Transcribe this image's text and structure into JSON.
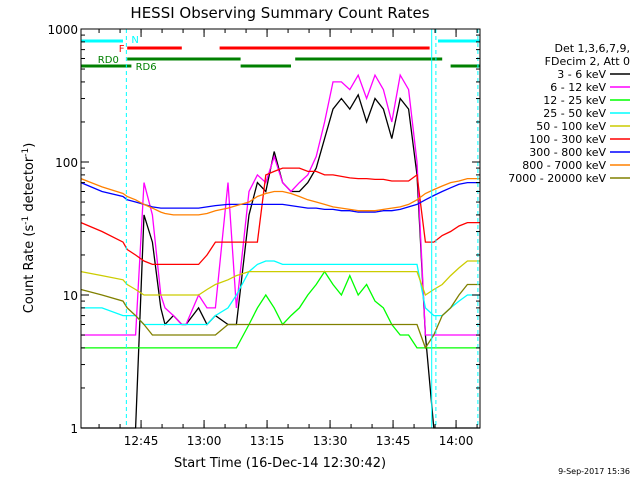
{
  "chart_data": {
    "type": "line",
    "title": "HESSI Observing Summary Count Rates",
    "xlabel": "Start Time (16-Dec-14 12:30:42)",
    "ylabel_main": "Count Rate (s",
    "ylabel_sup": "-1",
    "ylabel_mid": " detector",
    "ylabel_sup2": "-1",
    "ylabel_end": ")",
    "yscale": "log",
    "ylim": [
      1,
      1000
    ],
    "xlim_minutes": [
      0,
      95
    ],
    "x_ticks": [
      {
        "label": "12:45",
        "minutes": 14.3
      },
      {
        "label": "13:00",
        "minutes": 29.3
      },
      {
        "label": "13:15",
        "minutes": 44.3
      },
      {
        "label": "13:30",
        "minutes": 59.3
      },
      {
        "label": "13:45",
        "minutes": 74.3
      },
      {
        "label": "14:00",
        "minutes": 89.3
      }
    ],
    "y_ticks": [
      {
        "label": "1",
        "value": 1
      },
      {
        "label": "10",
        "value": 10
      },
      {
        "label": "100",
        "value": 100
      },
      {
        "label": "1000",
        "value": 1000
      }
    ],
    "legend_header": [
      "Det 1,3,6,7,9,",
      "FDecim 2, Att 0"
    ],
    "footer": "9-Sep-2017 15:36",
    "x_minutes": [
      0,
      5,
      10,
      11,
      13,
      15,
      17,
      19,
      20,
      22,
      24,
      25,
      28,
      30,
      32,
      35,
      37,
      40,
      42,
      44,
      46,
      48,
      50,
      52,
      54,
      56,
      58,
      60,
      62,
      64,
      66,
      68,
      70,
      72,
      74,
      76,
      78,
      80,
      82,
      84,
      86,
      88,
      90,
      92,
      95
    ],
    "series": [
      {
        "name": "3 - 6 keV",
        "color": "#000000",
        "values": [
          1,
          1,
          1,
          1,
          1,
          40,
          25,
          8,
          6,
          7,
          6,
          6,
          8,
          6,
          7,
          6,
          6,
          40,
          70,
          60,
          120,
          70,
          60,
          60,
          70,
          90,
          150,
          250,
          300,
          250,
          320,
          200,
          300,
          250,
          150,
          300,
          250,
          80,
          5,
          1,
          1,
          1,
          1,
          1,
          1
        ]
      },
      {
        "name": "6 - 12 keV",
        "color": "#ff00ff",
        "values": [
          5,
          5,
          5,
          5,
          5,
          70,
          40,
          10,
          8,
          7,
          6,
          6,
          10,
          8,
          8,
          70,
          8,
          60,
          80,
          70,
          110,
          70,
          60,
          70,
          80,
          110,
          200,
          400,
          400,
          350,
          450,
          300,
          450,
          350,
          200,
          450,
          350,
          100,
          5,
          5,
          5,
          5,
          5,
          5,
          5
        ]
      },
      {
        "name": "12 - 25 keV",
        "color": "#00ff00",
        "values": [
          4,
          4,
          4,
          4,
          4,
          4,
          4,
          4,
          4,
          4,
          4,
          4,
          4,
          4,
          4,
          4,
          4,
          6,
          8,
          10,
          8,
          6,
          7,
          8,
          10,
          12,
          15,
          12,
          10,
          14,
          10,
          12,
          9,
          8,
          6,
          5,
          5,
          4,
          4,
          4,
          4,
          4,
          4,
          4,
          4
        ]
      },
      {
        "name": "25 - 50 keV",
        "color": "#00ffff",
        "values": [
          8,
          8,
          7,
          7,
          7,
          6,
          6,
          6,
          6,
          6,
          6,
          6,
          6,
          6,
          7,
          8,
          10,
          15,
          17,
          18,
          18,
          17,
          17,
          17,
          17,
          17,
          17,
          17,
          17,
          17,
          17,
          17,
          17,
          17,
          17,
          17,
          17,
          17,
          8,
          7,
          7,
          8,
          9,
          10,
          10
        ]
      },
      {
        "name": "50 - 100 keV",
        "color": "#cccc00",
        "values": [
          15,
          14,
          13,
          12,
          11,
          10,
          10,
          10,
          10,
          10,
          10,
          10,
          10,
          11,
          12,
          13,
          14,
          15,
          15,
          15,
          15,
          15,
          15,
          15,
          15,
          15,
          15,
          15,
          15,
          15,
          15,
          15,
          15,
          15,
          15,
          15,
          15,
          15,
          10,
          11,
          12,
          14,
          16,
          18,
          18
        ]
      },
      {
        "name": "100 - 300 keV",
        "color": "#ff0000",
        "values": [
          35,
          30,
          25,
          22,
          20,
          18,
          17,
          17,
          17,
          17,
          17,
          17,
          17,
          20,
          25,
          25,
          25,
          25,
          25,
          80,
          85,
          90,
          90,
          90,
          85,
          85,
          80,
          80,
          78,
          76,
          75,
          75,
          74,
          74,
          72,
          72,
          72,
          80,
          25,
          25,
          28,
          30,
          33,
          35,
          35
        ]
      },
      {
        "name": "300 - 800 keV",
        "color": "#0000ff",
        "values": [
          70,
          60,
          55,
          52,
          50,
          48,
          46,
          45,
          45,
          45,
          45,
          45,
          45,
          46,
          47,
          48,
          48,
          48,
          48,
          48,
          48,
          48,
          47,
          46,
          45,
          45,
          44,
          44,
          43,
          43,
          42,
          42,
          42,
          43,
          43,
          44,
          46,
          48,
          52,
          56,
          60,
          64,
          68,
          70,
          70
        ]
      },
      {
        "name": "800 - 7000 keV",
        "color": "#ff8000",
        "values": [
          75,
          65,
          58,
          55,
          52,
          48,
          45,
          42,
          41,
          40,
          40,
          40,
          40,
          41,
          43,
          45,
          47,
          50,
          55,
          58,
          60,
          60,
          58,
          55,
          52,
          50,
          48,
          46,
          45,
          44,
          43,
          43,
          43,
          44,
          45,
          46,
          48,
          52,
          58,
          62,
          66,
          70,
          72,
          75,
          75
        ]
      },
      {
        "name": "7000 - 20000 keV",
        "color": "#808000",
        "values": [
          11,
          10,
          9,
          8,
          7,
          6,
          5,
          5,
          5,
          5,
          5,
          5,
          5,
          5,
          5,
          6,
          6,
          6,
          6,
          6,
          6,
          6,
          6,
          6,
          6,
          6,
          6,
          6,
          6,
          6,
          6,
          6,
          6,
          6,
          6,
          6,
          6,
          6,
          4,
          5,
          7,
          8,
          10,
          12,
          12
        ]
      }
    ],
    "flag_bars": [
      {
        "label": "N",
        "color": "#00ffff",
        "segments": [
          [
            0,
            10
          ],
          [
            85,
            95
          ]
        ]
      },
      {
        "label": "F",
        "color": "#ff0000",
        "segments": [
          [
            11,
            24
          ],
          [
            33,
            83
          ]
        ]
      },
      {
        "label": "RD0",
        "color": "#008000",
        "segments": [
          [
            11,
            38
          ],
          [
            51,
            86
          ]
        ]
      },
      {
        "label": "RD6",
        "color": "#008000",
        "segments": [
          [
            0,
            12
          ],
          [
            38,
            50
          ],
          [
            88,
            95
          ]
        ]
      }
    ],
    "vlines": [
      {
        "minutes": 10.8,
        "color": "#00ffff",
        "style": "dashed"
      },
      {
        "minutes": 83.5,
        "color": "#00ffff",
        "style": "solid"
      },
      {
        "minutes": 84.5,
        "color": "#00ffff",
        "style": "dashed"
      },
      {
        "minutes": 94.5,
        "color": "#00ffff",
        "style": "dashed"
      }
    ]
  }
}
